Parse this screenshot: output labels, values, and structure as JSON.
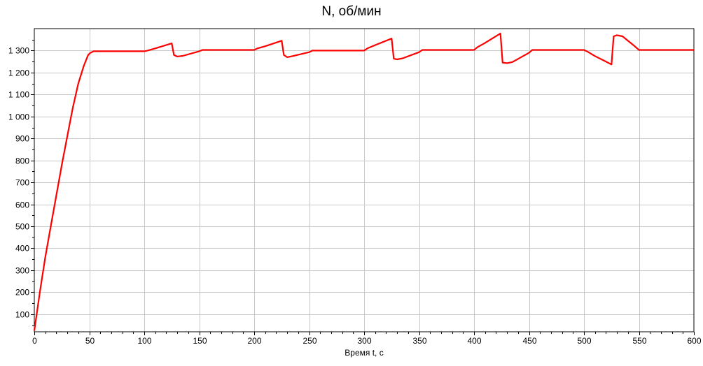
{
  "chart_data": {
    "type": "line",
    "title": "N, об/мин",
    "xlabel": "Время t, с",
    "ylabel": "",
    "xlim": [
      0,
      600
    ],
    "ylim": [
      20,
      1400
    ],
    "grid": true,
    "legend": "none",
    "x_ticks": [
      0,
      50,
      100,
      150,
      200,
      250,
      300,
      350,
      400,
      450,
      500,
      550,
      600
    ],
    "x_tick_labels": [
      "0",
      "50",
      "100",
      "150",
      "200",
      "250",
      "300",
      "350",
      "400",
      "450",
      "500",
      "550",
      "600"
    ],
    "y_ticks": [
      100,
      200,
      300,
      400,
      500,
      600,
      700,
      800,
      900,
      1000,
      1100,
      1200,
      1300
    ],
    "y_tick_labels": [
      "100",
      "200",
      "300",
      "400",
      "500",
      "600",
      "700",
      "800",
      "900",
      "1 000",
      "1 100",
      "1 200",
      "1 300"
    ],
    "series": [
      {
        "color": "#ff0000",
        "x": [
          0,
          1,
          5,
          10,
          15,
          20,
          25,
          30,
          35,
          40,
          45,
          49,
          51,
          54,
          57,
          100,
          103,
          110,
          125,
          127,
          130,
          135,
          150,
          153,
          200,
          203,
          210,
          225,
          227,
          230,
          235,
          250,
          253,
          300,
          303,
          310,
          325,
          327,
          330,
          335,
          350,
          353,
          400,
          403,
          410,
          424,
          426,
          430,
          435,
          450,
          453,
          500,
          503,
          510,
          518,
          525,
          527,
          530,
          535,
          545,
          550,
          600
        ],
        "y": [
          25,
          60,
          200,
          360,
          500,
          640,
          780,
          910,
          1040,
          1150,
          1230,
          1280,
          1290,
          1297,
          1297,
          1297,
          1300,
          1310,
          1333,
          1280,
          1273,
          1276,
          1297,
          1303,
          1303,
          1310,
          1320,
          1345,
          1280,
          1270,
          1275,
          1293,
          1300,
          1300,
          1310,
          1325,
          1355,
          1263,
          1260,
          1265,
          1293,
          1303,
          1303,
          1315,
          1335,
          1378,
          1245,
          1243,
          1248,
          1290,
          1303,
          1303,
          1296,
          1275,
          1255,
          1237,
          1365,
          1370,
          1365,
          1325,
          1303,
          1303
        ]
      }
    ]
  }
}
